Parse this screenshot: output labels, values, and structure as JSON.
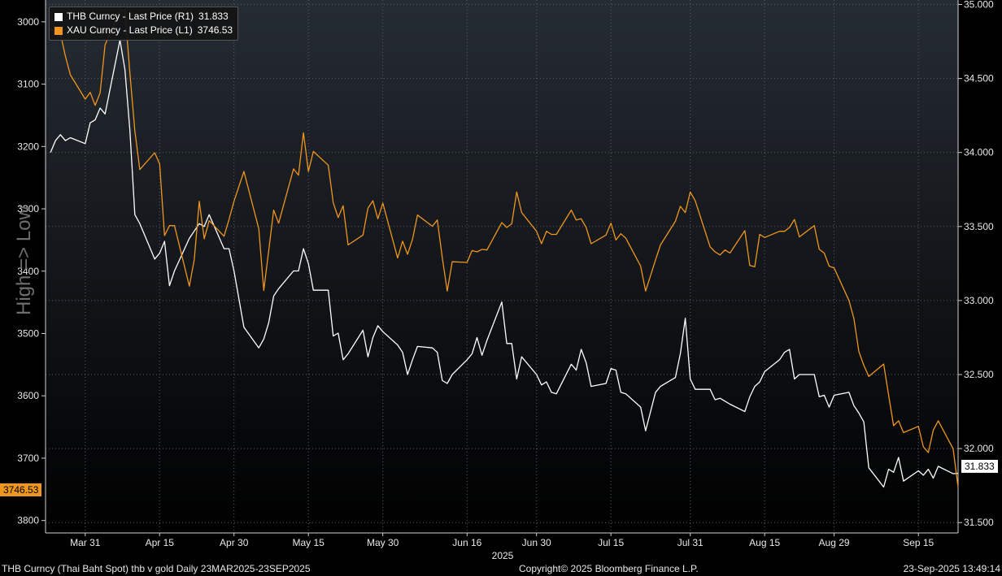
{
  "legend": [
    {
      "label": "THB Curncy - Last Price (R1)",
      "value": "31.833",
      "color": "#ffffff"
    },
    {
      "label": "XAU Curncy - Last Price (L1)",
      "value": "3746.53",
      "color": "#f0961e"
    }
  ],
  "left_axis_label": "High => Low",
  "x_year_label": "2025",
  "footer": {
    "left": "THB Curncy (Thai Baht Spot) thb v gold  Daily 23MAR2025-23SEP2025",
    "center": "Copyright© 2025 Bloomberg Finance L.P.",
    "right": "23-Sep-2025 13:49:14"
  },
  "last_value_tags": {
    "left": "3746.53",
    "right": "31.833"
  },
  "chart_data": {
    "type": "line",
    "title": "",
    "x_tick_labels": [
      "Mar 31",
      "Apr 15",
      "Apr 30",
      "May 15",
      "May 30",
      "Jun 16",
      "Jun 30",
      "Jul 15",
      "Jul 31",
      "Aug 15",
      "Aug 29",
      "Sep 15"
    ],
    "x_tick_dates": [
      "2025-03-31",
      "2025-04-15",
      "2025-04-30",
      "2025-05-15",
      "2025-05-30",
      "2025-06-16",
      "2025-06-30",
      "2025-07-15",
      "2025-07-31",
      "2025-08-15",
      "2025-08-29",
      "2025-09-15"
    ],
    "xlim": [
      "2025-03-23",
      "2025-09-23"
    ],
    "left_axis": {
      "inverted": true,
      "ylim": [
        2965,
        3820
      ],
      "ticks": [
        3000,
        3100,
        3200,
        3300,
        3400,
        3500,
        3600,
        3700,
        3800
      ]
    },
    "right_axis": {
      "ylim": [
        31.43,
        35.03
      ],
      "ticks": [
        "31.500",
        "32.000",
        "32.500",
        "33.000",
        "33.500",
        "34.000",
        "34.500",
        "35.000"
      ]
    },
    "grid": true,
    "series": [
      {
        "name": "THB Curncy - Last Price (R1)",
        "axis": "right",
        "color": "#ffffff",
        "points": [
          [
            "2025-03-24",
            34.0
          ],
          [
            "2025-03-25",
            34.08
          ],
          [
            "2025-03-26",
            34.12
          ],
          [
            "2025-03-27",
            34.08
          ],
          [
            "2025-03-28",
            34.1
          ],
          [
            "2025-03-31",
            34.06
          ],
          [
            "2025-04-01",
            34.2
          ],
          [
            "2025-04-02",
            34.22
          ],
          [
            "2025-04-03",
            34.3
          ],
          [
            "2025-04-04",
            34.26
          ],
          [
            "2025-04-07",
            34.76
          ],
          [
            "2025-04-08",
            34.56
          ],
          [
            "2025-04-09",
            34.15
          ],
          [
            "2025-04-10",
            33.58
          ],
          [
            "2025-04-11",
            33.52
          ],
          [
            "2025-04-14",
            33.28
          ],
          [
            "2025-04-15",
            33.32
          ],
          [
            "2025-04-16",
            33.4
          ],
          [
            "2025-04-17",
            33.1
          ],
          [
            "2025-04-18",
            33.2
          ],
          [
            "2025-04-21",
            33.42
          ],
          [
            "2025-04-22",
            33.47
          ],
          [
            "2025-04-23",
            33.52
          ],
          [
            "2025-04-24",
            33.5
          ],
          [
            "2025-04-25",
            33.58
          ],
          [
            "2025-04-28",
            33.35
          ],
          [
            "2025-04-29",
            33.35
          ],
          [
            "2025-04-30",
            33.2
          ],
          [
            "2025-05-02",
            32.82
          ],
          [
            "2025-05-05",
            32.68
          ],
          [
            "2025-05-06",
            32.74
          ],
          [
            "2025-05-07",
            32.85
          ],
          [
            "2025-05-08",
            33.03
          ],
          [
            "2025-05-09",
            33.08
          ],
          [
            "2025-05-12",
            33.2
          ],
          [
            "2025-05-13",
            33.2
          ],
          [
            "2025-05-14",
            33.35
          ],
          [
            "2025-05-15",
            33.25
          ],
          [
            "2025-05-16",
            33.07
          ],
          [
            "2025-05-19",
            33.07
          ],
          [
            "2025-05-20",
            32.76
          ],
          [
            "2025-05-21",
            32.78
          ],
          [
            "2025-05-22",
            32.6
          ],
          [
            "2025-05-23",
            32.64
          ],
          [
            "2025-05-26",
            32.8
          ],
          [
            "2025-05-27",
            32.62
          ],
          [
            "2025-05-28",
            32.75
          ],
          [
            "2025-05-29",
            32.83
          ],
          [
            "2025-05-30",
            32.79
          ],
          [
            "2025-06-02",
            32.7
          ],
          [
            "2025-06-03",
            32.65
          ],
          [
            "2025-06-04",
            32.5
          ],
          [
            "2025-06-05",
            32.6
          ],
          [
            "2025-06-06",
            32.69
          ],
          [
            "2025-06-09",
            32.68
          ],
          [
            "2025-06-10",
            32.65
          ],
          [
            "2025-06-11",
            32.46
          ],
          [
            "2025-06-12",
            32.44
          ],
          [
            "2025-06-13",
            32.5
          ],
          [
            "2025-06-16",
            32.6
          ],
          [
            "2025-06-17",
            32.64
          ],
          [
            "2025-06-18",
            32.75
          ],
          [
            "2025-06-19",
            32.63
          ],
          [
            "2025-06-20",
            32.73
          ],
          [
            "2025-06-23",
            32.99
          ],
          [
            "2025-06-24",
            32.71
          ],
          [
            "2025-06-25",
            32.71
          ],
          [
            "2025-06-26",
            32.47
          ],
          [
            "2025-06-27",
            32.62
          ],
          [
            "2025-06-30",
            32.5
          ],
          [
            "2025-07-01",
            32.43
          ],
          [
            "2025-07-02",
            32.45
          ],
          [
            "2025-07-03",
            32.38
          ],
          [
            "2025-07-04",
            32.37
          ],
          [
            "2025-07-07",
            32.57
          ],
          [
            "2025-07-08",
            32.53
          ],
          [
            "2025-07-09",
            32.67
          ],
          [
            "2025-07-10",
            32.58
          ],
          [
            "2025-07-11",
            32.42
          ],
          [
            "2025-07-14",
            32.44
          ],
          [
            "2025-07-15",
            32.54
          ],
          [
            "2025-07-16",
            32.53
          ],
          [
            "2025-07-17",
            32.38
          ],
          [
            "2025-07-18",
            32.37
          ],
          [
            "2025-07-21",
            32.28
          ],
          [
            "2025-07-22",
            32.12
          ],
          [
            "2025-07-24",
            32.38
          ],
          [
            "2025-07-25",
            32.42
          ],
          [
            "2025-07-28",
            32.48
          ],
          [
            "2025-07-29",
            32.64
          ],
          [
            "2025-07-30",
            32.88
          ],
          [
            "2025-07-31",
            32.47
          ],
          [
            "2025-08-01",
            32.4
          ],
          [
            "2025-08-04",
            32.4
          ],
          [
            "2025-08-05",
            32.33
          ],
          [
            "2025-08-06",
            32.34
          ],
          [
            "2025-08-07",
            32.32
          ],
          [
            "2025-08-08",
            32.3
          ],
          [
            "2025-08-11",
            32.25
          ],
          [
            "2025-08-12",
            32.35
          ],
          [
            "2025-08-13",
            32.42
          ],
          [
            "2025-08-14",
            32.45
          ],
          [
            "2025-08-15",
            32.52
          ],
          [
            "2025-08-18",
            32.6
          ],
          [
            "2025-08-19",
            32.65
          ],
          [
            "2025-08-20",
            32.67
          ],
          [
            "2025-08-21",
            32.47
          ],
          [
            "2025-08-22",
            32.5
          ],
          [
            "2025-08-25",
            32.5
          ],
          [
            "2025-08-26",
            32.35
          ],
          [
            "2025-08-27",
            32.36
          ],
          [
            "2025-08-28",
            32.28
          ],
          [
            "2025-08-29",
            32.36
          ],
          [
            "2025-09-01",
            32.38
          ],
          [
            "2025-09-02",
            32.29
          ],
          [
            "2025-09-03",
            32.24
          ],
          [
            "2025-09-04",
            32.18
          ],
          [
            "2025-09-05",
            31.87
          ],
          [
            "2025-09-08",
            31.74
          ],
          [
            "2025-09-09",
            31.86
          ],
          [
            "2025-09-10",
            31.84
          ],
          [
            "2025-09-11",
            31.94
          ],
          [
            "2025-09-12",
            31.78
          ],
          [
            "2025-09-15",
            31.85
          ],
          [
            "2025-09-16",
            31.82
          ],
          [
            "2025-09-17",
            31.86
          ],
          [
            "2025-09-18",
            31.8
          ],
          [
            "2025-09-19",
            31.88
          ],
          [
            "2025-09-22",
            31.83
          ],
          [
            "2025-09-23",
            31.833
          ]
        ]
      },
      {
        "name": "XAU Curncy - Last Price (L1)",
        "axis": "left",
        "color": "#f0961e",
        "points": [
          [
            "2025-03-24",
            3010
          ],
          [
            "2025-03-25",
            3019
          ],
          [
            "2025-03-26",
            3019
          ],
          [
            "2025-03-27",
            3055
          ],
          [
            "2025-03-28",
            3085
          ],
          [
            "2025-03-31",
            3124
          ],
          [
            "2025-04-01",
            3113
          ],
          [
            "2025-04-02",
            3134
          ],
          [
            "2025-04-03",
            3114
          ],
          [
            "2025-04-04",
            3037
          ],
          [
            "2025-04-07",
            2982
          ],
          [
            "2025-04-08",
            2982
          ],
          [
            "2025-04-09",
            3082
          ],
          [
            "2025-04-10",
            3175
          ],
          [
            "2025-04-11",
            3237
          ],
          [
            "2025-04-14",
            3210
          ],
          [
            "2025-04-15",
            3228
          ],
          [
            "2025-04-16",
            3343
          ],
          [
            "2025-04-17",
            3327
          ],
          [
            "2025-04-18",
            3327
          ],
          [
            "2025-04-21",
            3424
          ],
          [
            "2025-04-22",
            3381
          ],
          [
            "2025-04-23",
            3288
          ],
          [
            "2025-04-24",
            3348
          ],
          [
            "2025-04-25",
            3319
          ],
          [
            "2025-04-28",
            3344
          ],
          [
            "2025-04-29",
            3317
          ],
          [
            "2025-04-30",
            3288
          ],
          [
            "2025-05-02",
            3240
          ],
          [
            "2025-05-05",
            3332
          ],
          [
            "2025-05-06",
            3431
          ],
          [
            "2025-05-07",
            3367
          ],
          [
            "2025-05-08",
            3302
          ],
          [
            "2025-05-09",
            3323
          ],
          [
            "2025-05-12",
            3236
          ],
          [
            "2025-05-13",
            3246
          ],
          [
            "2025-05-14",
            3178
          ],
          [
            "2025-05-15",
            3240
          ],
          [
            "2025-05-16",
            3208
          ],
          [
            "2025-05-19",
            3230
          ],
          [
            "2025-05-20",
            3290
          ],
          [
            "2025-05-21",
            3314
          ],
          [
            "2025-05-22",
            3295
          ],
          [
            "2025-05-23",
            3358
          ],
          [
            "2025-05-26",
            3342
          ],
          [
            "2025-05-27",
            3299
          ],
          [
            "2025-05-28",
            3287
          ],
          [
            "2025-05-29",
            3316
          ],
          [
            "2025-05-30",
            3291
          ],
          [
            "2025-06-02",
            3379
          ],
          [
            "2025-06-03",
            3352
          ],
          [
            "2025-06-04",
            3373
          ],
          [
            "2025-06-05",
            3349
          ],
          [
            "2025-06-06",
            3310
          ],
          [
            "2025-06-09",
            3328
          ],
          [
            "2025-06-10",
            3318
          ],
          [
            "2025-06-11",
            3378
          ],
          [
            "2025-06-12",
            3432
          ],
          [
            "2025-06-13",
            3385
          ],
          [
            "2025-06-16",
            3386
          ],
          [
            "2025-06-17",
            3367
          ],
          [
            "2025-06-18",
            3369
          ],
          [
            "2025-06-19",
            3365
          ],
          [
            "2025-06-20",
            3366
          ],
          [
            "2025-06-23",
            3322
          ],
          [
            "2025-06-24",
            3330
          ],
          [
            "2025-06-25",
            3324
          ],
          [
            "2025-06-26",
            3273
          ],
          [
            "2025-06-27",
            3306
          ],
          [
            "2025-06-30",
            3336
          ],
          [
            "2025-07-01",
            3356
          ],
          [
            "2025-07-02",
            3336
          ],
          [
            "2025-07-03",
            3341
          ],
          [
            "2025-07-04",
            3341
          ],
          [
            "2025-07-07",
            3302
          ],
          [
            "2025-07-08",
            3318
          ],
          [
            "2025-07-09",
            3316
          ],
          [
            "2025-07-10",
            3330
          ],
          [
            "2025-07-11",
            3356
          ],
          [
            "2025-07-14",
            3342
          ],
          [
            "2025-07-15",
            3323
          ],
          [
            "2025-07-16",
            3350
          ],
          [
            "2025-07-17",
            3340
          ],
          [
            "2025-07-18",
            3347
          ],
          [
            "2025-07-21",
            3392
          ],
          [
            "2025-07-22",
            3432
          ],
          [
            "2025-07-24",
            3382
          ],
          [
            "2025-07-25",
            3358
          ],
          [
            "2025-07-28",
            3320
          ],
          [
            "2025-07-29",
            3296
          ],
          [
            "2025-07-30",
            3306
          ],
          [
            "2025-07-31",
            3273
          ],
          [
            "2025-08-01",
            3287
          ],
          [
            "2025-08-04",
            3361
          ],
          [
            "2025-08-05",
            3369
          ],
          [
            "2025-08-06",
            3374
          ],
          [
            "2025-08-07",
            3366
          ],
          [
            "2025-08-08",
            3371
          ],
          [
            "2025-08-11",
            3335
          ],
          [
            "2025-08-12",
            3391
          ],
          [
            "2025-08-13",
            3393
          ],
          [
            "2025-08-14",
            3341
          ],
          [
            "2025-08-15",
            3346
          ],
          [
            "2025-08-18",
            3336
          ],
          [
            "2025-08-19",
            3336
          ],
          [
            "2025-08-20",
            3330
          ],
          [
            "2025-08-21",
            3317
          ],
          [
            "2025-08-22",
            3345
          ],
          [
            "2025-08-25",
            3327
          ],
          [
            "2025-08-26",
            3365
          ],
          [
            "2025-08-27",
            3371
          ],
          [
            "2025-08-28",
            3392
          ],
          [
            "2025-08-29",
            3395
          ],
          [
            "2025-09-01",
            3447
          ],
          [
            "2025-09-02",
            3476
          ],
          [
            "2025-09-03",
            3529
          ],
          [
            "2025-09-04",
            3551
          ],
          [
            "2025-09-05",
            3569
          ],
          [
            "2025-09-08",
            3549
          ],
          [
            "2025-09-09",
            3599
          ],
          [
            "2025-09-10",
            3648
          ],
          [
            "2025-09-11",
            3640
          ],
          [
            "2025-09-12",
            3659
          ],
          [
            "2025-09-15",
            3649
          ],
          [
            "2025-09-16",
            3682
          ],
          [
            "2025-09-17",
            3691
          ],
          [
            "2025-09-18",
            3655
          ],
          [
            "2025-09-19",
            3640
          ],
          [
            "2025-09-22",
            3685
          ],
          [
            "2025-09-23",
            3746.53
          ]
        ]
      }
    ]
  }
}
